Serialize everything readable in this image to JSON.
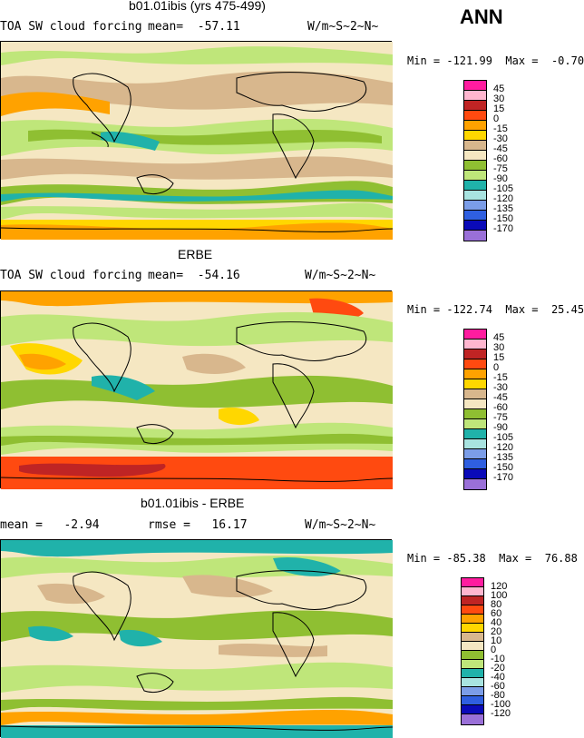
{
  "season": "ANN",
  "panels": [
    {
      "title": "b01.01ibis (yrs 475-499)",
      "left_text": "TOA SW cloud forcing",
      "mid_text": "mean=  -57.11",
      "units": "W/m~S~2~N~",
      "minmax": "Min = -121.99  Max =  -0.70",
      "legend": [
        {
          "label": "45",
          "color": "#ff1c9f"
        },
        {
          "label": "30",
          "color": "#ffb6cf"
        },
        {
          "label": "15",
          "color": "#bf2424"
        },
        {
          "label": "0",
          "color": "#ff4a10"
        },
        {
          "label": "-15",
          "color": "#ffa200"
        },
        {
          "label": "-30",
          "color": "#ffd700"
        },
        {
          "label": "-45",
          "color": "#d8b78d"
        },
        {
          "label": "-60",
          "color": "#f5e7c2"
        },
        {
          "label": "-75",
          "color": "#8fbf32"
        },
        {
          "label": "-90",
          "color": "#bfe67a"
        },
        {
          "label": "-105",
          "color": "#20b2aa"
        },
        {
          "label": "-120",
          "color": "#a8e3e0"
        },
        {
          "label": "-135",
          "color": "#7b9de8"
        },
        {
          "label": "-150",
          "color": "#2f5fe0"
        },
        {
          "label": "-170",
          "color": "#0a0ab8"
        },
        {
          "label": "",
          "color": "#9a70d8"
        }
      ]
    },
    {
      "title": "ERBE",
      "left_text": "TOA SW cloud forcing",
      "mid_text": "mean=  -54.16",
      "units": "W/m~S~2~N~",
      "minmax": "Min = -122.74  Max =  25.45",
      "legend": [
        {
          "label": "45",
          "color": "#ff1c9f"
        },
        {
          "label": "30",
          "color": "#ffb6cf"
        },
        {
          "label": "15",
          "color": "#bf2424"
        },
        {
          "label": "0",
          "color": "#ff4a10"
        },
        {
          "label": "-15",
          "color": "#ffa200"
        },
        {
          "label": "-30",
          "color": "#ffd700"
        },
        {
          "label": "-45",
          "color": "#d8b78d"
        },
        {
          "label": "-60",
          "color": "#f5e7c2"
        },
        {
          "label": "-75",
          "color": "#8fbf32"
        },
        {
          "label": "-90",
          "color": "#bfe67a"
        },
        {
          "label": "-105",
          "color": "#20b2aa"
        },
        {
          "label": "-120",
          "color": "#a8e3e0"
        },
        {
          "label": "-135",
          "color": "#7b9de8"
        },
        {
          "label": "-150",
          "color": "#2f5fe0"
        },
        {
          "label": "-170",
          "color": "#0a0ab8"
        },
        {
          "label": "",
          "color": "#9a70d8"
        }
      ]
    },
    {
      "title": "b01.01ibis - ERBE",
      "left_text": "mean =   -2.94",
      "mid_text": "rmse =   16.17",
      "units": "W/m~S~2~N~",
      "minmax": "Min = -85.38  Max =  76.88",
      "legend": [
        {
          "label": "120",
          "color": "#ff1c9f"
        },
        {
          "label": "100",
          "color": "#ffb6cf"
        },
        {
          "label": "80",
          "color": "#bf2424"
        },
        {
          "label": "60",
          "color": "#ff4a10"
        },
        {
          "label": "40",
          "color": "#ffa200"
        },
        {
          "label": "20",
          "color": "#ffd700"
        },
        {
          "label": "10",
          "color": "#d8b78d"
        },
        {
          "label": "0",
          "color": "#f5e7c2"
        },
        {
          "label": "-10",
          "color": "#8fbf32"
        },
        {
          "label": "-20",
          "color": "#bfe67a"
        },
        {
          "label": "-40",
          "color": "#20b2aa"
        },
        {
          "label": "-60",
          "color": "#a8e3e0"
        },
        {
          "label": "-80",
          "color": "#7b9de8"
        },
        {
          "label": "-100",
          "color": "#2f5fe0"
        },
        {
          "label": "-120",
          "color": "#0a0ab8"
        },
        {
          "label": "",
          "color": "#9a70d8"
        }
      ]
    }
  ]
}
